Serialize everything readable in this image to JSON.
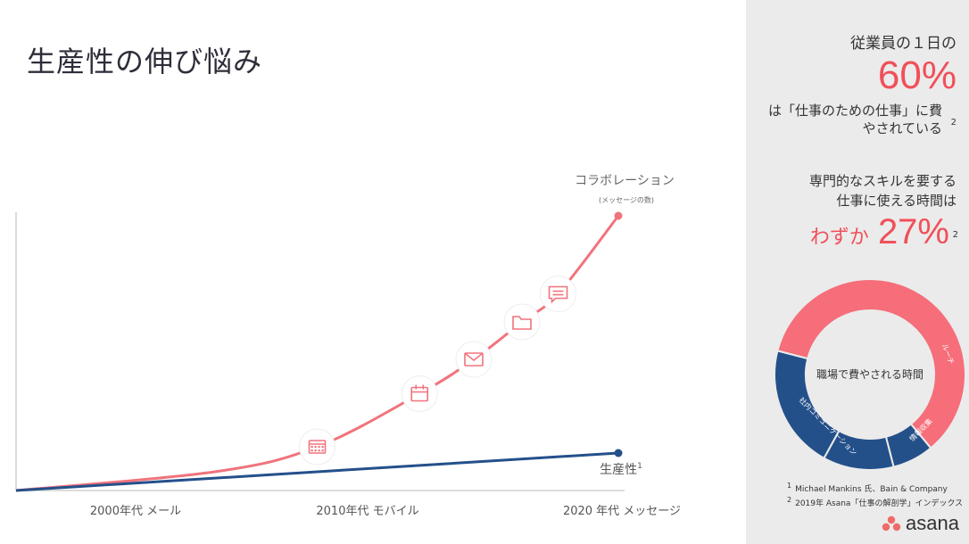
{
  "title": "生産性の伸び悩み",
  "chart_data": {
    "type": "line",
    "x_categories": [
      "2000年代 メール",
      "2010年代 モバイル",
      "2020 年代 メッセージ"
    ],
    "series": [
      {
        "name": "コラボレーション",
        "sublabel": "(メッセージの数)",
        "color": "#f0737c",
        "x": [
          0,
          0.33,
          0.5,
          0.67,
          0.76,
          0.84,
          0.9,
          1.0
        ],
        "y": [
          0,
          0.06,
          0.14,
          0.31,
          0.42,
          0.54,
          0.63,
          0.88
        ]
      },
      {
        "name": "生産性",
        "superscript": "1",
        "color": "#24508a",
        "x": [
          0,
          1.0
        ],
        "y": [
          0,
          0.12
        ]
      }
    ],
    "icons": [
      "calendar-grid-icon",
      "calendar-icon",
      "mail-icon",
      "folder-icon",
      "chat-icon"
    ]
  },
  "side": {
    "stat1_text": "従業員の１日の",
    "stat1_value": "60%",
    "stat1_desc1": "は「仕事のための仕事」に費",
    "stat1_desc2": "やされている",
    "stat1_note": "2",
    "stat2_text1": "専門的なスキルを要する",
    "stat2_text2": "仕事に使える時間は",
    "stat2_prefix": "わずか",
    "stat2_value": "27%",
    "stat2_note": "2",
    "donut": {
      "center_label": "職場で費やされる時間",
      "segments": [
        {
          "label": "",
          "share": 0.6,
          "color": "#f56e7a"
        },
        {
          "label": "ルーチ",
          "share": 0.07,
          "color": "#24508a"
        },
        {
          "label": "情報収集",
          "share": 0.12,
          "color": "#24508a"
        },
        {
          "label": "社内コミュニケーション",
          "share": 0.21,
          "color": "#24508a"
        }
      ]
    },
    "footnotes": [
      {
        "num": "1",
        "text": "Michael Mankins 氏、Bain & Company"
      },
      {
        "num": "2",
        "text": "2019年 Asana「仕事の解剖学」インデックス"
      }
    ],
    "logo_text": "asana",
    "logo_color": "#f06a6a"
  }
}
